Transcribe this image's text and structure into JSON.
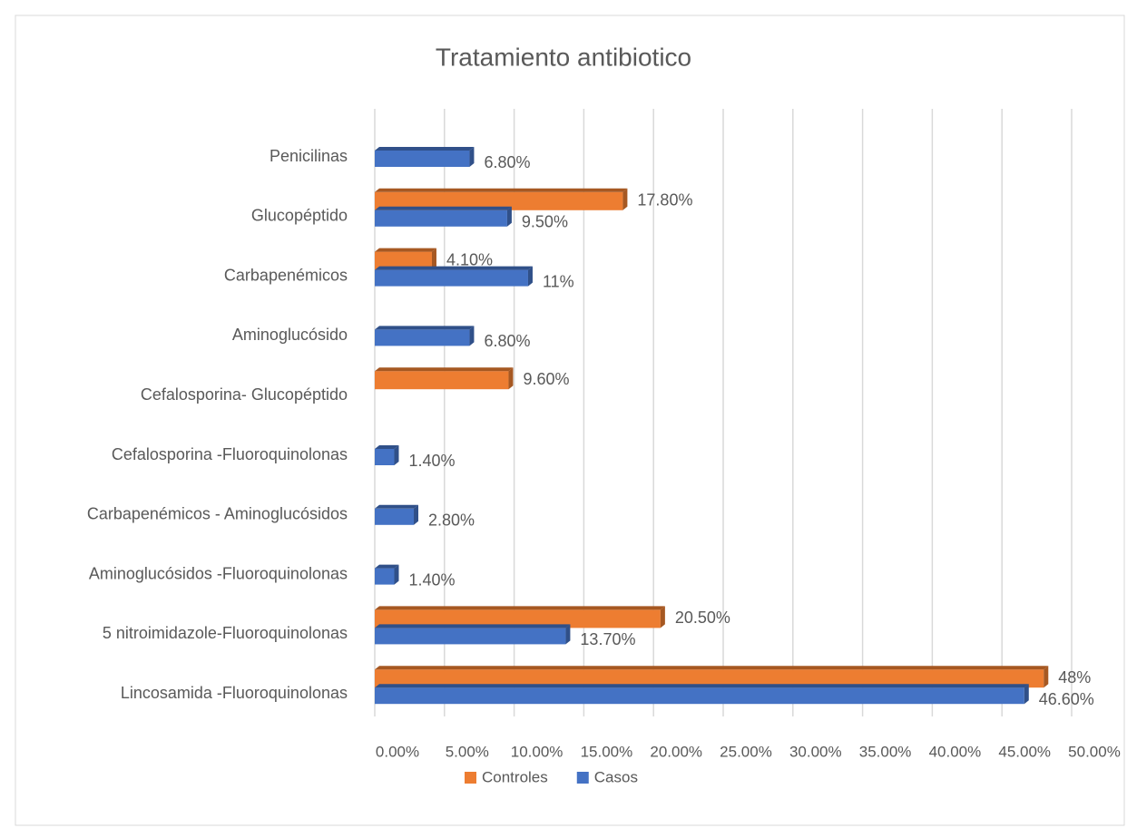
{
  "chart_data": {
    "type": "barh",
    "title": "Tratamiento antibiotico",
    "categories": [
      "Penicilinas",
      "Glucopéptido",
      "Carbapenémicos",
      "Aminoglucósido",
      "Cefalosporina- Glucopéptido",
      "Cefalosporina -Fluoroquinolonas",
      "Carbapenémicos - Aminoglucósidos",
      "Aminoglucósidos -Fluoroquinolonas",
      "5 nitroimidazole-Fluoroquinolonas",
      "Lincosamida -Fluoroquinolonas"
    ],
    "series": [
      {
        "name": "Controles",
        "color": "#ed7d31",
        "values": [
          null,
          17.8,
          4.1,
          null,
          9.6,
          null,
          null,
          null,
          20.5,
          48
        ],
        "value_labels": [
          null,
          "17.80%",
          "4.10%",
          null,
          "9.60%",
          null,
          null,
          null,
          "20.50%",
          "48%"
        ]
      },
      {
        "name": "Casos",
        "color": "#4472c4",
        "values": [
          6.8,
          9.5,
          11,
          6.8,
          null,
          1.4,
          2.8,
          1.4,
          13.7,
          46.6
        ],
        "value_labels": [
          "6.80%",
          "9.50%",
          "11%",
          "6.80%",
          null,
          "1.40%",
          "2.80%",
          "1.40%",
          "13.70%",
          "46.60%"
        ]
      }
    ],
    "xlim": [
      0,
      50
    ],
    "xticks": [
      {
        "value": 0,
        "label": "0.00%"
      },
      {
        "value": 5,
        "label": "5.00%"
      },
      {
        "value": 10,
        "label": "10.00%"
      },
      {
        "value": 15,
        "label": "15.00%"
      },
      {
        "value": 20,
        "label": "20.00%"
      },
      {
        "value": 25,
        "label": "25.00%"
      },
      {
        "value": 30,
        "label": "30.00%"
      },
      {
        "value": 35,
        "label": "35.00%"
      },
      {
        "value": 40,
        "label": "40.00%"
      },
      {
        "value": 45,
        "label": "45.00%"
      },
      {
        "value": 50,
        "label": "50.00%"
      }
    ],
    "grid": true,
    "legend": "bottom"
  }
}
